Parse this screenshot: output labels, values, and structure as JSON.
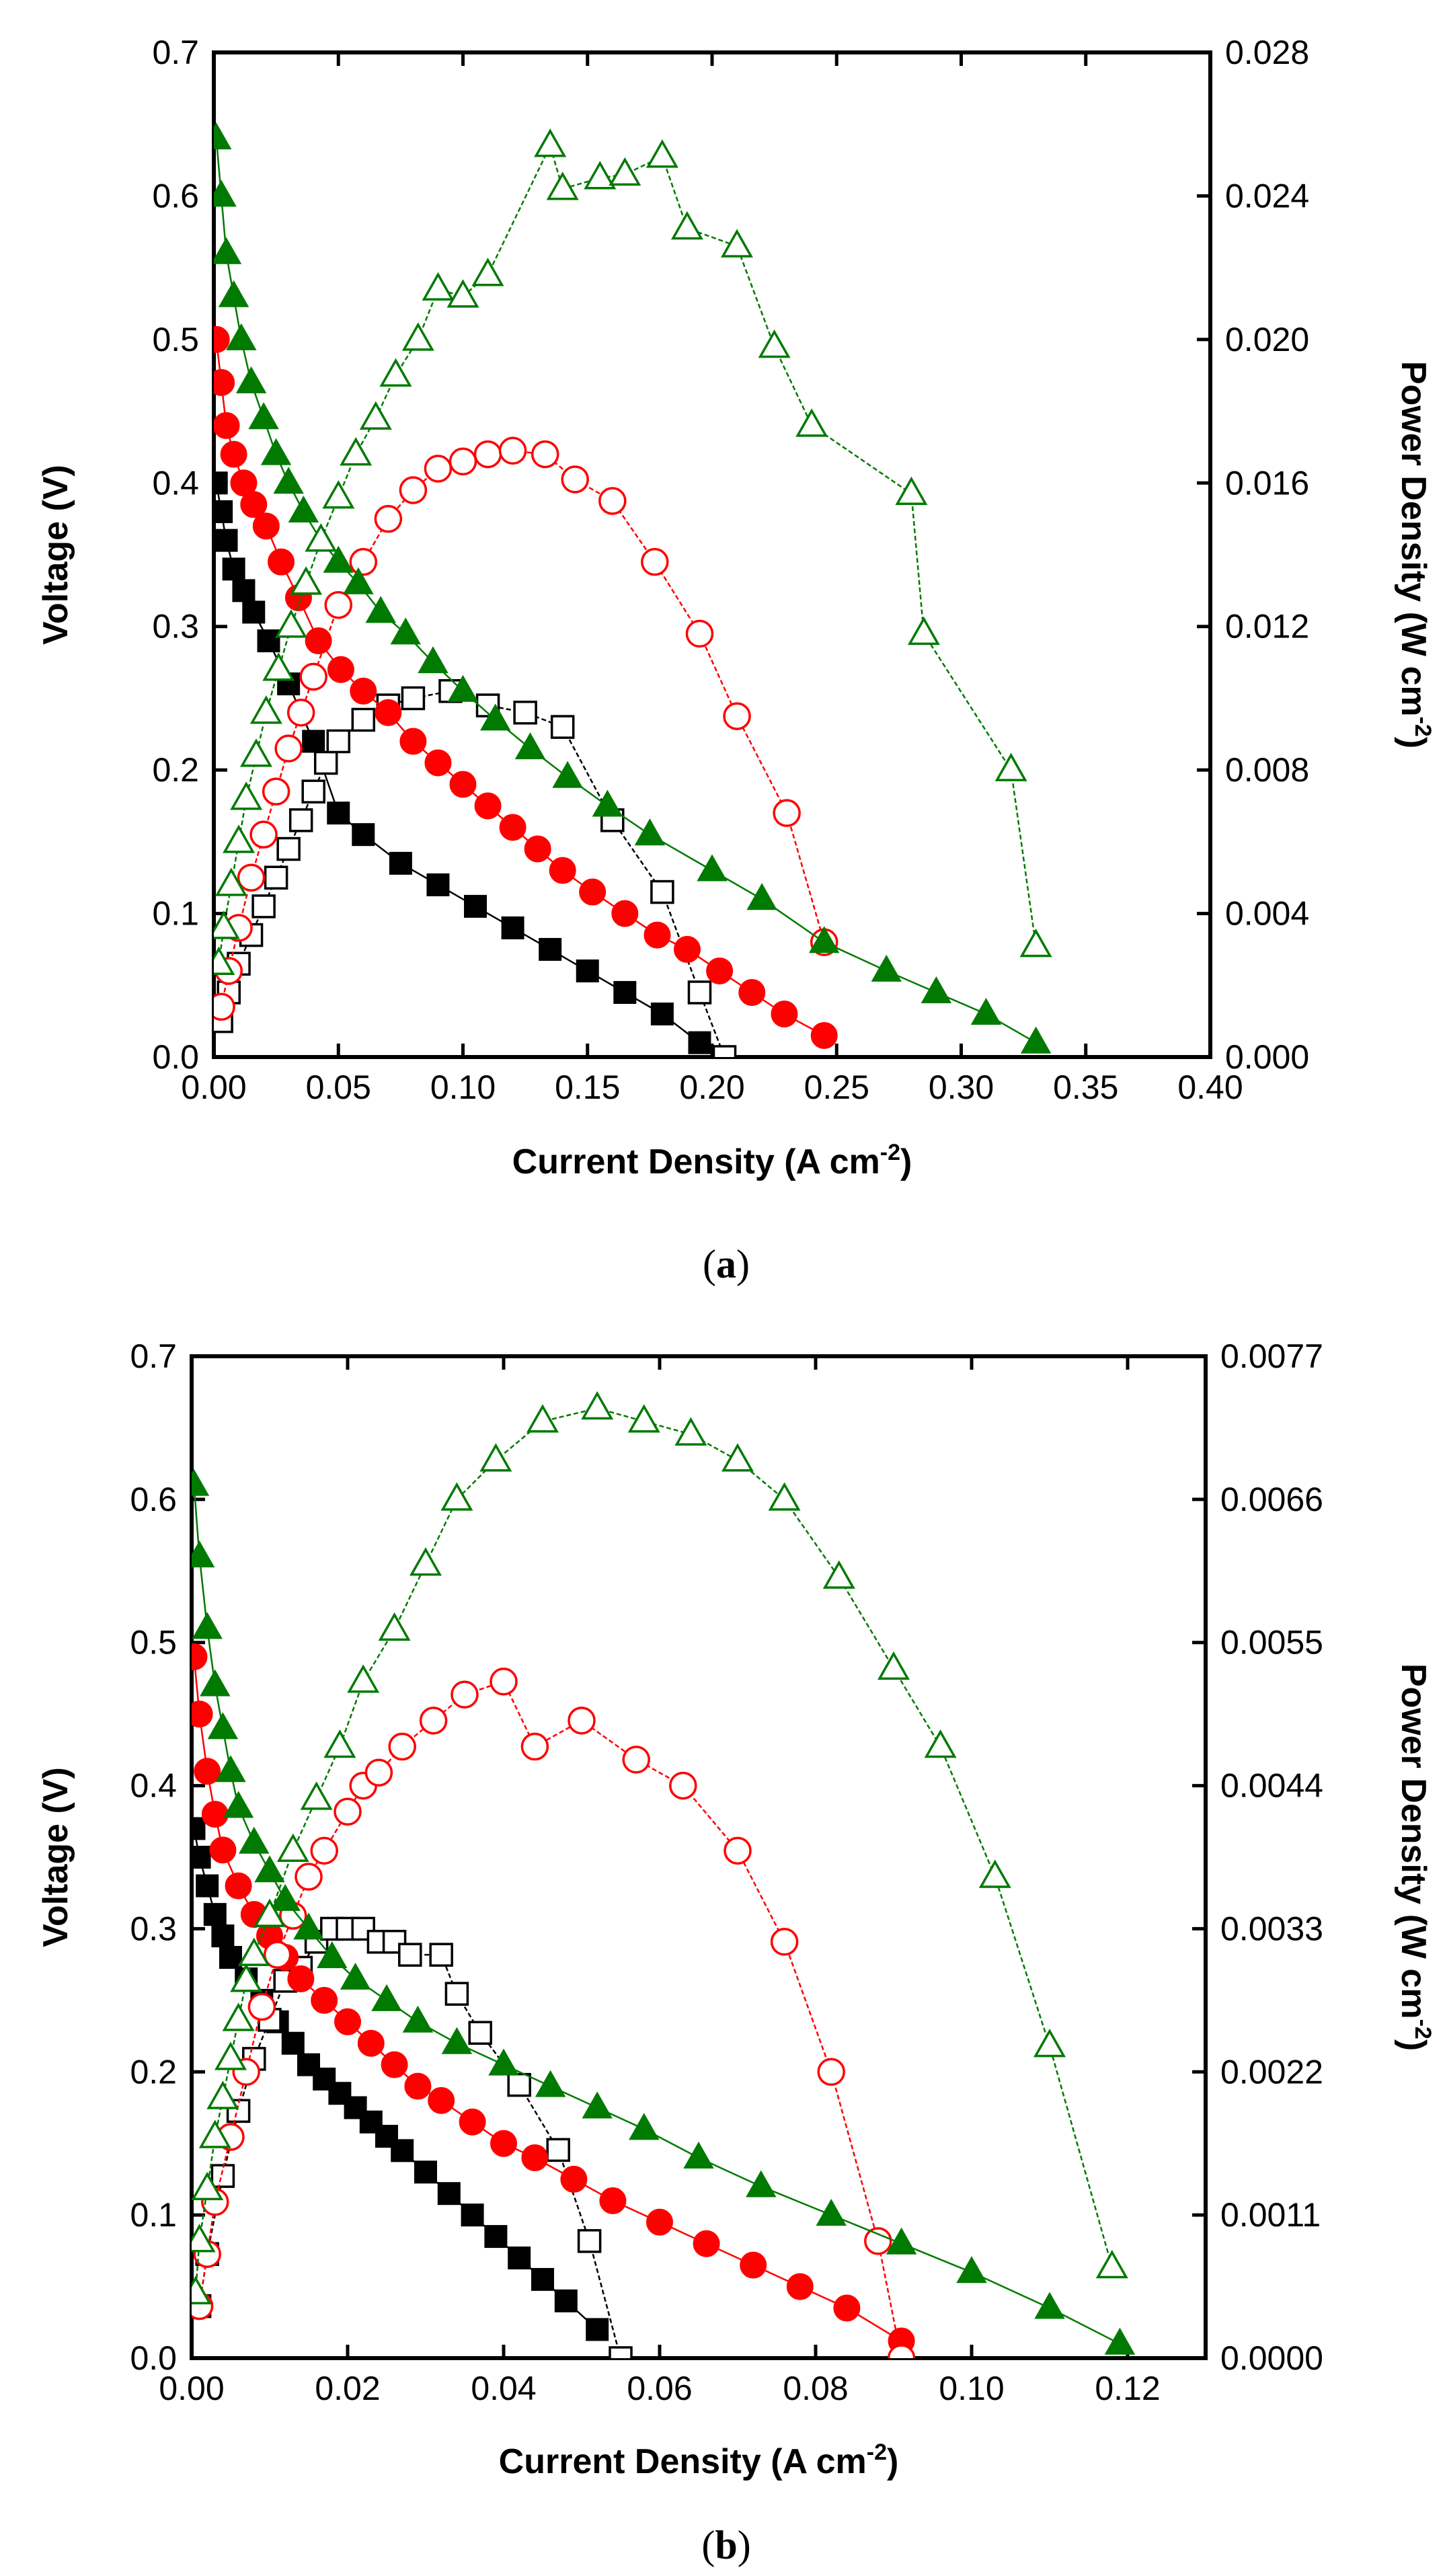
{
  "colors": {
    "black": "#000000",
    "red": "#ff0000",
    "green": "#007a00"
  },
  "chart_data": [
    {
      "type": "line",
      "panel_label_open": "(",
      "panel_label_letter": "a",
      "panel_label_close": ")",
      "xlabel_main": "Current Density (A cm",
      "xlabel_sup": "-2",
      "xlabel_end": ")",
      "ylabel": "Voltage (V)",
      "y2label_main": "Power Density (W cm",
      "y2label_sup": "-2",
      "y2label_end": ")",
      "xlim": [
        0,
        0.4
      ],
      "ylim": [
        0,
        0.7
      ],
      "y2lim": [
        0,
        0.028
      ],
      "xticks": [
        "0.00",
        "0.05",
        "0.10",
        "0.15",
        "0.20",
        "0.25",
        "0.30",
        "0.35",
        "0.40"
      ],
      "yticks": [
        "0.0",
        "0.1",
        "0.2",
        "0.3",
        "0.4",
        "0.5",
        "0.6",
        "0.7"
      ],
      "y2ticks": [
        "0.000",
        "0.004",
        "0.008",
        "0.012",
        "0.016",
        "0.020",
        "0.024",
        "0.028"
      ],
      "series": [
        {
          "name": "black-voltage",
          "axis": "left",
          "color": "#000000",
          "marker": "square",
          "filled": true,
          "x": [
            0.001,
            0.003,
            0.005,
            0.008,
            0.012,
            0.016,
            0.022,
            0.03,
            0.04,
            0.05,
            0.06,
            0.075,
            0.09,
            0.105,
            0.12,
            0.135,
            0.15,
            0.165,
            0.18,
            0.195
          ],
          "y": [
            0.4,
            0.38,
            0.36,
            0.34,
            0.325,
            0.31,
            0.29,
            0.26,
            0.22,
            0.17,
            0.155,
            0.135,
            0.12,
            0.105,
            0.09,
            0.075,
            0.06,
            0.045,
            0.03,
            0.01
          ]
        },
        {
          "name": "black-power",
          "axis": "right",
          "color": "#000000",
          "marker": "square",
          "filled": false,
          "x": [
            0.003,
            0.006,
            0.01,
            0.015,
            0.02,
            0.025,
            0.03,
            0.035,
            0.04,
            0.045,
            0.05,
            0.06,
            0.07,
            0.08,
            0.095,
            0.11,
            0.125,
            0.14,
            0.16,
            0.18,
            0.195,
            0.205
          ],
          "y": [
            0.001,
            0.0018,
            0.0026,
            0.0034,
            0.0042,
            0.005,
            0.0058,
            0.0066,
            0.0074,
            0.0082,
            0.0088,
            0.0094,
            0.0098,
            0.01,
            0.0102,
            0.0098,
            0.0096,
            0.0092,
            0.0066,
            0.0046,
            0.0018,
            0.0
          ]
        },
        {
          "name": "red-voltage",
          "axis": "left",
          "color": "#ff0000",
          "marker": "circle",
          "filled": true,
          "x": [
            0.001,
            0.003,
            0.005,
            0.008,
            0.012,
            0.016,
            0.021,
            0.027,
            0.034,
            0.042,
            0.051,
            0.06,
            0.07,
            0.08,
            0.09,
            0.1,
            0.11,
            0.12,
            0.13,
            0.14,
            0.152,
            0.165,
            0.178,
            0.19,
            0.203,
            0.216,
            0.229,
            0.245
          ],
          "y": [
            0.5,
            0.47,
            0.44,
            0.42,
            0.4,
            0.385,
            0.37,
            0.345,
            0.32,
            0.29,
            0.27,
            0.255,
            0.24,
            0.22,
            0.205,
            0.19,
            0.175,
            0.16,
            0.145,
            0.13,
            0.115,
            0.1,
            0.085,
            0.075,
            0.06,
            0.045,
            0.03,
            0.015
          ]
        },
        {
          "name": "red-power",
          "axis": "right",
          "color": "#ff0000",
          "marker": "circle",
          "filled": false,
          "x": [
            0.003,
            0.006,
            0.01,
            0.015,
            0.02,
            0.025,
            0.03,
            0.035,
            0.04,
            0.05,
            0.06,
            0.07,
            0.08,
            0.09,
            0.1,
            0.11,
            0.12,
            0.133,
            0.145,
            0.16,
            0.177,
            0.195,
            0.21,
            0.23,
            0.245
          ],
          "y": [
            0.0014,
            0.0024,
            0.0036,
            0.005,
            0.0062,
            0.0074,
            0.0086,
            0.0096,
            0.0106,
            0.0126,
            0.0138,
            0.015,
            0.0158,
            0.0164,
            0.0166,
            0.0168,
            0.0169,
            0.0168,
            0.0161,
            0.0155,
            0.0138,
            0.0118,
            0.0095,
            0.0068,
            0.0032
          ]
        },
        {
          "name": "green-voltage",
          "axis": "left",
          "color": "#007a00",
          "marker": "triangle",
          "filled": true,
          "x": [
            0.001,
            0.003,
            0.005,
            0.008,
            0.011,
            0.015,
            0.02,
            0.025,
            0.03,
            0.036,
            0.043,
            0.05,
            0.058,
            0.067,
            0.077,
            0.088,
            0.1,
            0.113,
            0.127,
            0.142,
            0.158,
            0.175,
            0.2,
            0.22,
            0.245,
            0.27,
            0.29,
            0.31,
            0.33
          ],
          "y": [
            0.64,
            0.6,
            0.56,
            0.53,
            0.5,
            0.47,
            0.445,
            0.42,
            0.4,
            0.38,
            0.36,
            0.345,
            0.33,
            0.31,
            0.295,
            0.275,
            0.255,
            0.235,
            0.215,
            0.195,
            0.175,
            0.155,
            0.13,
            0.11,
            0.08,
            0.06,
            0.045,
            0.03,
            0.01
          ]
        },
        {
          "name": "green-power",
          "axis": "right",
          "color": "#007a00",
          "marker": "triangle",
          "filled": false,
          "x": [
            0.002,
            0.004,
            0.007,
            0.01,
            0.013,
            0.017,
            0.021,
            0.026,
            0.031,
            0.037,
            0.043,
            0.05,
            0.057,
            0.065,
            0.073,
            0.082,
            0.09,
            0.1,
            0.11,
            0.135,
            0.14,
            0.155,
            0.165,
            0.18,
            0.19,
            0.21,
            0.225,
            0.24,
            0.28,
            0.285,
            0.32,
            0.33
          ],
          "y": [
            0.0026,
            0.0036,
            0.0048,
            0.006,
            0.0072,
            0.0084,
            0.0096,
            0.0108,
            0.012,
            0.0132,
            0.0144,
            0.0156,
            0.0168,
            0.0178,
            0.019,
            0.02,
            0.0214,
            0.0212,
            0.0218,
            0.0254,
            0.0242,
            0.0245,
            0.0246,
            0.0251,
            0.0231,
            0.0226,
            0.0198,
            0.0176,
            0.0157,
            0.0118,
            0.008,
            0.0031
          ]
        }
      ]
    },
    {
      "type": "line",
      "panel_label_open": "(",
      "panel_label_letter": "b",
      "panel_label_close": ")",
      "xlabel_main": "Current Density (A cm",
      "xlabel_sup": "-2",
      "xlabel_end": ")",
      "ylabel": "Voltage (V)",
      "y2label_main": "Power Density (W cm",
      "y2label_sup": "-2",
      "y2label_end": ")",
      "xlim": [
        0,
        0.13
      ],
      "ylim": [
        0,
        0.7
      ],
      "y2lim": [
        0,
        0.0077
      ],
      "xticks": [
        "0.00",
        "0.02",
        "0.04",
        "0.06",
        "0.08",
        "0.10",
        "0.12"
      ],
      "xtick_values": [
        0,
        0.02,
        0.04,
        0.06,
        0.08,
        0.1,
        0.12
      ],
      "yticks": [
        "0.0",
        "0.1",
        "0.2",
        "0.3",
        "0.4",
        "0.5",
        "0.6",
        "0.7"
      ],
      "y2ticks": [
        "0.0000",
        "0.0011",
        "0.0022",
        "0.0033",
        "0.0044",
        "0.0055",
        "0.0066",
        "0.0077"
      ],
      "series": [
        {
          "name": "black-voltage",
          "axis": "left",
          "color": "#000000",
          "marker": "square",
          "filled": true,
          "x": [
            0.0003,
            0.001,
            0.002,
            0.003,
            0.004,
            0.005,
            0.007,
            0.009,
            0.011,
            0.013,
            0.015,
            0.017,
            0.019,
            0.021,
            0.023,
            0.025,
            0.027,
            0.03,
            0.033,
            0.036,
            0.039,
            0.042,
            0.045,
            0.048,
            0.052
          ],
          "y": [
            0.37,
            0.35,
            0.33,
            0.31,
            0.295,
            0.28,
            0.265,
            0.25,
            0.235,
            0.22,
            0.205,
            0.195,
            0.185,
            0.175,
            0.165,
            0.155,
            0.145,
            0.13,
            0.115,
            0.1,
            0.085,
            0.07,
            0.055,
            0.04,
            0.02
          ]
        },
        {
          "name": "black-power",
          "axis": "right",
          "color": "#000000",
          "marker": "square",
          "filled": false,
          "x": [
            0.001,
            0.002,
            0.004,
            0.006,
            0.008,
            0.01,
            0.012,
            0.014,
            0.016,
            0.018,
            0.02,
            0.022,
            0.024,
            0.026,
            0.028,
            0.032,
            0.034,
            0.037,
            0.042,
            0.047,
            0.051,
            0.055
          ],
          "y": [
            0.0004,
            0.0008,
            0.0014,
            0.0019,
            0.0023,
            0.0026,
            0.0029,
            0.003,
            0.0032,
            0.0033,
            0.0033,
            0.0033,
            0.0032,
            0.0032,
            0.0031,
            0.0031,
            0.0028,
            0.0025,
            0.0021,
            0.0016,
            0.0009,
            0.0
          ]
        },
        {
          "name": "red-voltage",
          "axis": "left",
          "color": "#ff0000",
          "marker": "circle",
          "filled": true,
          "x": [
            0.0003,
            0.001,
            0.002,
            0.003,
            0.004,
            0.006,
            0.008,
            0.01,
            0.012,
            0.014,
            0.017,
            0.02,
            0.023,
            0.026,
            0.029,
            0.032,
            0.036,
            0.04,
            0.044,
            0.049,
            0.054,
            0.06,
            0.066,
            0.072,
            0.078,
            0.084,
            0.091
          ],
          "y": [
            0.49,
            0.45,
            0.41,
            0.38,
            0.355,
            0.33,
            0.31,
            0.295,
            0.28,
            0.265,
            0.25,
            0.235,
            0.22,
            0.205,
            0.19,
            0.18,
            0.165,
            0.15,
            0.14,
            0.125,
            0.11,
            0.095,
            0.08,
            0.065,
            0.05,
            0.035,
            0.012
          ]
        },
        {
          "name": "red-power",
          "axis": "right",
          "color": "#ff0000",
          "marker": "circle",
          "filled": false,
          "x": [
            0.001,
            0.002,
            0.003,
            0.005,
            0.007,
            0.009,
            0.011,
            0.013,
            0.015,
            0.017,
            0.02,
            0.022,
            0.024,
            0.027,
            0.031,
            0.035,
            0.04,
            0.044,
            0.05,
            0.057,
            0.063,
            0.07,
            0.076,
            0.082,
            0.088,
            0.091
          ],
          "y": [
            0.0004,
            0.0008,
            0.0012,
            0.0017,
            0.0022,
            0.0027,
            0.0031,
            0.0034,
            0.0037,
            0.0039,
            0.0042,
            0.0044,
            0.0045,
            0.0047,
            0.0049,
            0.0051,
            0.0052,
            0.0047,
            0.0049,
            0.0046,
            0.0044,
            0.0039,
            0.0032,
            0.0022,
            0.0009,
            0.0
          ]
        },
        {
          "name": "green-voltage",
          "axis": "left",
          "color": "#007a00",
          "marker": "triangle",
          "filled": true,
          "x": [
            0.0003,
            0.001,
            0.002,
            0.003,
            0.004,
            0.005,
            0.006,
            0.008,
            0.01,
            0.012,
            0.015,
            0.018,
            0.021,
            0.025,
            0.029,
            0.034,
            0.04,
            0.046,
            0.052,
            0.058,
            0.065,
            0.073,
            0.082,
            0.091,
            0.1,
            0.11,
            0.119
          ],
          "y": [
            0.61,
            0.56,
            0.51,
            0.47,
            0.44,
            0.41,
            0.385,
            0.36,
            0.34,
            0.32,
            0.3,
            0.28,
            0.265,
            0.25,
            0.235,
            0.22,
            0.205,
            0.19,
            0.175,
            0.16,
            0.14,
            0.12,
            0.1,
            0.08,
            0.06,
            0.035,
            0.01
          ]
        },
        {
          "name": "green-power",
          "axis": "right",
          "color": "#007a00",
          "marker": "triangle",
          "filled": false,
          "x": [
            0.0005,
            0.001,
            0.002,
            0.003,
            0.004,
            0.005,
            0.006,
            0.007,
            0.008,
            0.01,
            0.013,
            0.016,
            0.019,
            0.022,
            0.026,
            0.03,
            0.034,
            0.039,
            0.045,
            0.052,
            0.058,
            0.064,
            0.07,
            0.076,
            0.083,
            0.09,
            0.096,
            0.103,
            0.11,
            0.118
          ],
          "y": [
            0.0005,
            0.0009,
            0.0013,
            0.0017,
            0.002,
            0.0023,
            0.0026,
            0.0029,
            0.0031,
            0.0034,
            0.0039,
            0.0043,
            0.0047,
            0.0052,
            0.0056,
            0.0061,
            0.0066,
            0.0069,
            0.0072,
            0.0073,
            0.0072,
            0.0071,
            0.0069,
            0.0066,
            0.006,
            0.0053,
            0.0047,
            0.0037,
            0.0024,
            0.0007
          ]
        }
      ]
    }
  ]
}
